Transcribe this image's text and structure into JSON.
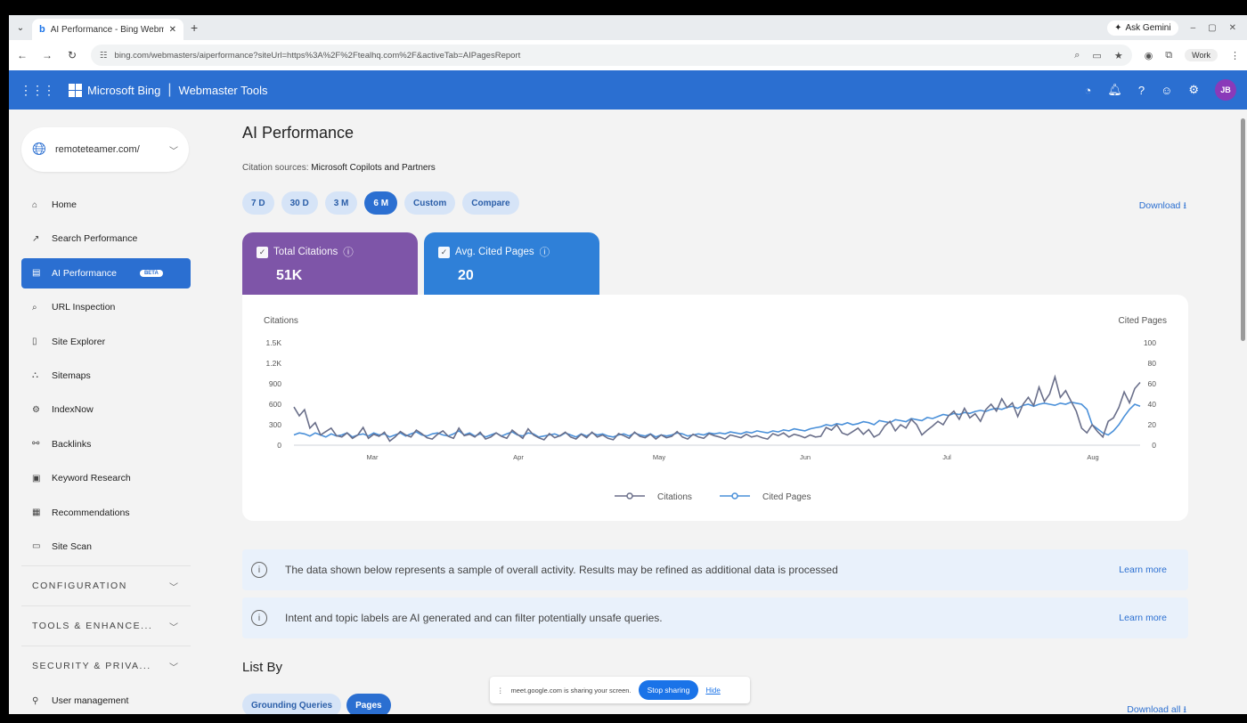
{
  "browser": {
    "tab_title": "AI Performance - Bing Webmaster",
    "url": "bing.com/webmasters/aiperformance?siteUrl=https%3A%2F%2Ftealhq.com%2F&activeTab=AIPagesReport",
    "ask_gemini": "Ask Gemini",
    "profile": "Work"
  },
  "header": {
    "brand": "Microsoft Bing",
    "product": "Webmaster Tools",
    "avatar_initials": "JB"
  },
  "sidebar": {
    "site": "remoteteamer.com/",
    "items": [
      {
        "label": "Home",
        "icon": "⌂"
      },
      {
        "label": "Search Performance",
        "icon": "↗"
      },
      {
        "label": "AI Performance",
        "icon": "▤",
        "badge": "BETA"
      },
      {
        "label": "URL Inspection",
        "icon": "⌕"
      },
      {
        "label": "Site Explorer",
        "icon": "▯"
      },
      {
        "label": "Sitemaps",
        "icon": "⛬"
      },
      {
        "label": "IndexNow",
        "icon": "⚙"
      },
      {
        "label": "Backlinks",
        "icon": "⚯"
      },
      {
        "label": "Keyword Research",
        "icon": "▣"
      },
      {
        "label": "Recommendations",
        "icon": "▦"
      },
      {
        "label": "Site Scan",
        "icon": "▭"
      }
    ],
    "sections": [
      "CONFIGURATION",
      "TOOLS & ENHANCE...",
      "SECURITY & PRIVA..."
    ],
    "user_management": "User management"
  },
  "main": {
    "title": "AI Performance",
    "citation_label": "Citation sources:",
    "citation_value": "Microsoft Copilots and Partners",
    "ranges": [
      "7 D",
      "30 D",
      "3 M",
      "6 M",
      "Custom",
      "Compare"
    ],
    "selected_range": "6 M",
    "download": "Download ⭳",
    "cards": [
      {
        "label": "Total Citations",
        "value": "51K"
      },
      {
        "label": "Avg. Cited Pages",
        "value": "20"
      }
    ],
    "banners": [
      {
        "text": "The data shown below represents a sample of overall activity. Results may be refined as additional data is processed",
        "link": "Learn more"
      },
      {
        "text": "Intent and topic labels are AI generated and can filter potentially unsafe queries.",
        "link": "Learn more"
      }
    ],
    "list_by": "List By",
    "list_tabs": [
      "Grounding Queries",
      "Pages"
    ],
    "download_all": "Download all ⭳"
  },
  "share_bar": {
    "text": "meet.google.com is sharing your screen.",
    "stop": "Stop sharing",
    "hide": "Hide"
  },
  "chart_data": {
    "type": "line",
    "ylabel": "Citations",
    "y2label": "Cited Pages",
    "ylim": [
      0,
      1500
    ],
    "y2lim": [
      0,
      100
    ],
    "yticks": [
      "1.5K",
      "1.2K",
      "900",
      "600",
      "300",
      "0"
    ],
    "y2ticks": [
      "100",
      "80",
      "60",
      "40",
      "20",
      "0"
    ],
    "xticks": [
      "Mar",
      "Apr",
      "May",
      "Jun",
      "Jul",
      "Aug"
    ],
    "legend": "bottom",
    "colors": {
      "citations": "#6a6f8a",
      "cited_pages": "#4a90d9"
    },
    "series": [
      {
        "name": "Citations",
        "axis": "left",
        "values": [
          560,
          430,
          520,
          250,
          330,
          150,
          200,
          250,
          140,
          120,
          180,
          100,
          150,
          260,
          100,
          160,
          130,
          190,
          60,
          120,
          200,
          150,
          120,
          220,
          170,
          110,
          90,
          160,
          210,
          130,
          100,
          250,
          140,
          160,
          120,
          190,
          90,
          120,
          180,
          130,
          100,
          220,
          160,
          100,
          240,
          150,
          110,
          80,
          170,
          110,
          140,
          190,
          120,
          90,
          160,
          110,
          190,
          120,
          150,
          100,
          80,
          170,
          140,
          100,
          190,
          130,
          110,
          160,
          90,
          150,
          110,
          130,
          200,
          120,
          90,
          160,
          120,
          100,
          170,
          140,
          120,
          90,
          150,
          130,
          110,
          160,
          120,
          140,
          110,
          90,
          170,
          140,
          180,
          120,
          160,
          140,
          110,
          150,
          120,
          130,
          260,
          220,
          300,
          180,
          150,
          200,
          250,
          160,
          230,
          120,
          160,
          280,
          350,
          210,
          300,
          250,
          380,
          300,
          150,
          220,
          280,
          350,
          300,
          430,
          500,
          380,
          540,
          400,
          460,
          350,
          520,
          600,
          500,
          680,
          550,
          620,
          420,
          600,
          700,
          580,
          850,
          640,
          750,
          1000,
          700,
          800,
          650,
          500,
          250,
          180,
          300,
          200,
          120,
          350,
          400,
          550,
          780,
          620,
          830,
          920
        ]
      },
      {
        "name": "Cited Pages",
        "axis": "right",
        "values": [
          10,
          12,
          11,
          9,
          12,
          10,
          8,
          11,
          9,
          10,
          12,
          8,
          10,
          11,
          9,
          12,
          10,
          11,
          8,
          10,
          12,
          9,
          11,
          13,
          10,
          9,
          11,
          12,
          10,
          9,
          11,
          14,
          10,
          12,
          9,
          11,
          8,
          10,
          12,
          9,
          11,
          13,
          10,
          9,
          12,
          11,
          8,
          9,
          10,
          11,
          9,
          12,
          10,
          8,
          11,
          9,
          12,
          10,
          11,
          9,
          8,
          10,
          11,
          9,
          12,
          10,
          9,
          11,
          8,
          10,
          9,
          10,
          12,
          11,
          9,
          10,
          11,
          10,
          12,
          11,
          12,
          11,
          13,
          12,
          11,
          13,
          12,
          14,
          13,
          12,
          14,
          13,
          15,
          14,
          16,
          15,
          14,
          16,
          17,
          18,
          20,
          19,
          21,
          20,
          22,
          20,
          21,
          23,
          22,
          20,
          24,
          23,
          22,
          25,
          24,
          23,
          26,
          25,
          24,
          27,
          26,
          28,
          30,
          29,
          31,
          30,
          32,
          31,
          33,
          34,
          33,
          35,
          36,
          35,
          37,
          38,
          36,
          39,
          40,
          38,
          40,
          41,
          40,
          39,
          41,
          40,
          42,
          41,
          40,
          35,
          20,
          16,
          12,
          10,
          14,
          20,
          28,
          35,
          40,
          38
        ]
      }
    ]
  }
}
